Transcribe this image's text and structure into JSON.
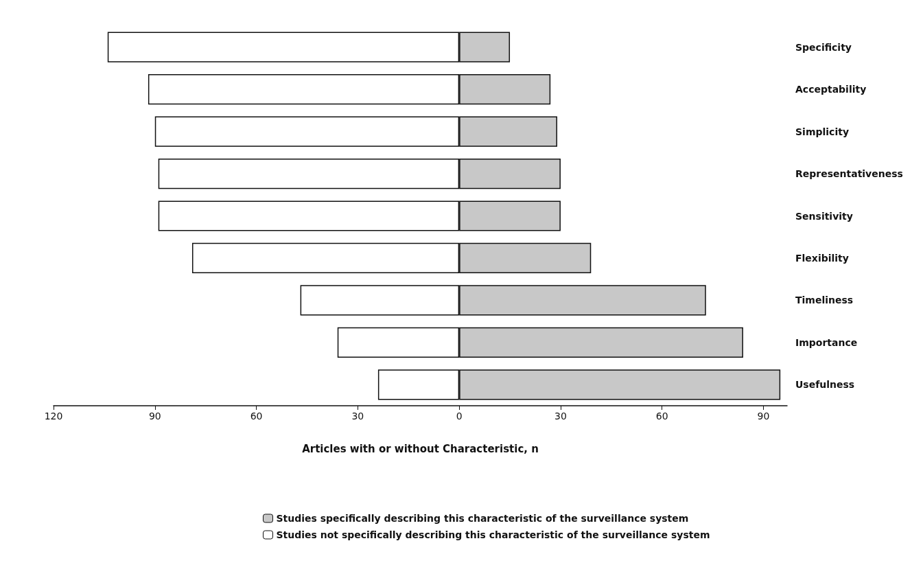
{
  "chart_data": {
    "type": "bar",
    "orientation": "horizontal",
    "stacked": true,
    "xlabel": "Articles with or without Characteristic, n",
    "categories": [
      "Specificity",
      "Acceptability",
      "Simplicity",
      "Representativeness",
      "Sensitivity",
      "Flexibility",
      "Timeliness",
      "Importance",
      "Usefulness"
    ],
    "series": [
      {
        "name": "Studies specifically describing this characteristic of the surveillance system",
        "color": "#c8c8c8",
        "values": [
          15,
          27,
          29,
          30,
          30,
          39,
          73,
          84,
          95
        ]
      },
      {
        "name": "Studies not specifically describing this characteristic of the surveillance system",
        "color": "#ffffff",
        "values": [
          -104,
          -92,
          -90,
          -89,
          -89,
          -79,
          -47,
          -36,
          -24
        ]
      }
    ],
    "xlim": [
      -120,
      97
    ],
    "xticks": [
      {
        "value": -120,
        "label": "120"
      },
      {
        "value": -90,
        "label": "90"
      },
      {
        "value": -60,
        "label": "60"
      },
      {
        "value": -30,
        "label": "30"
      },
      0,
      30,
      60,
      90
    ],
    "grid": false,
    "legend": "bottom"
  }
}
